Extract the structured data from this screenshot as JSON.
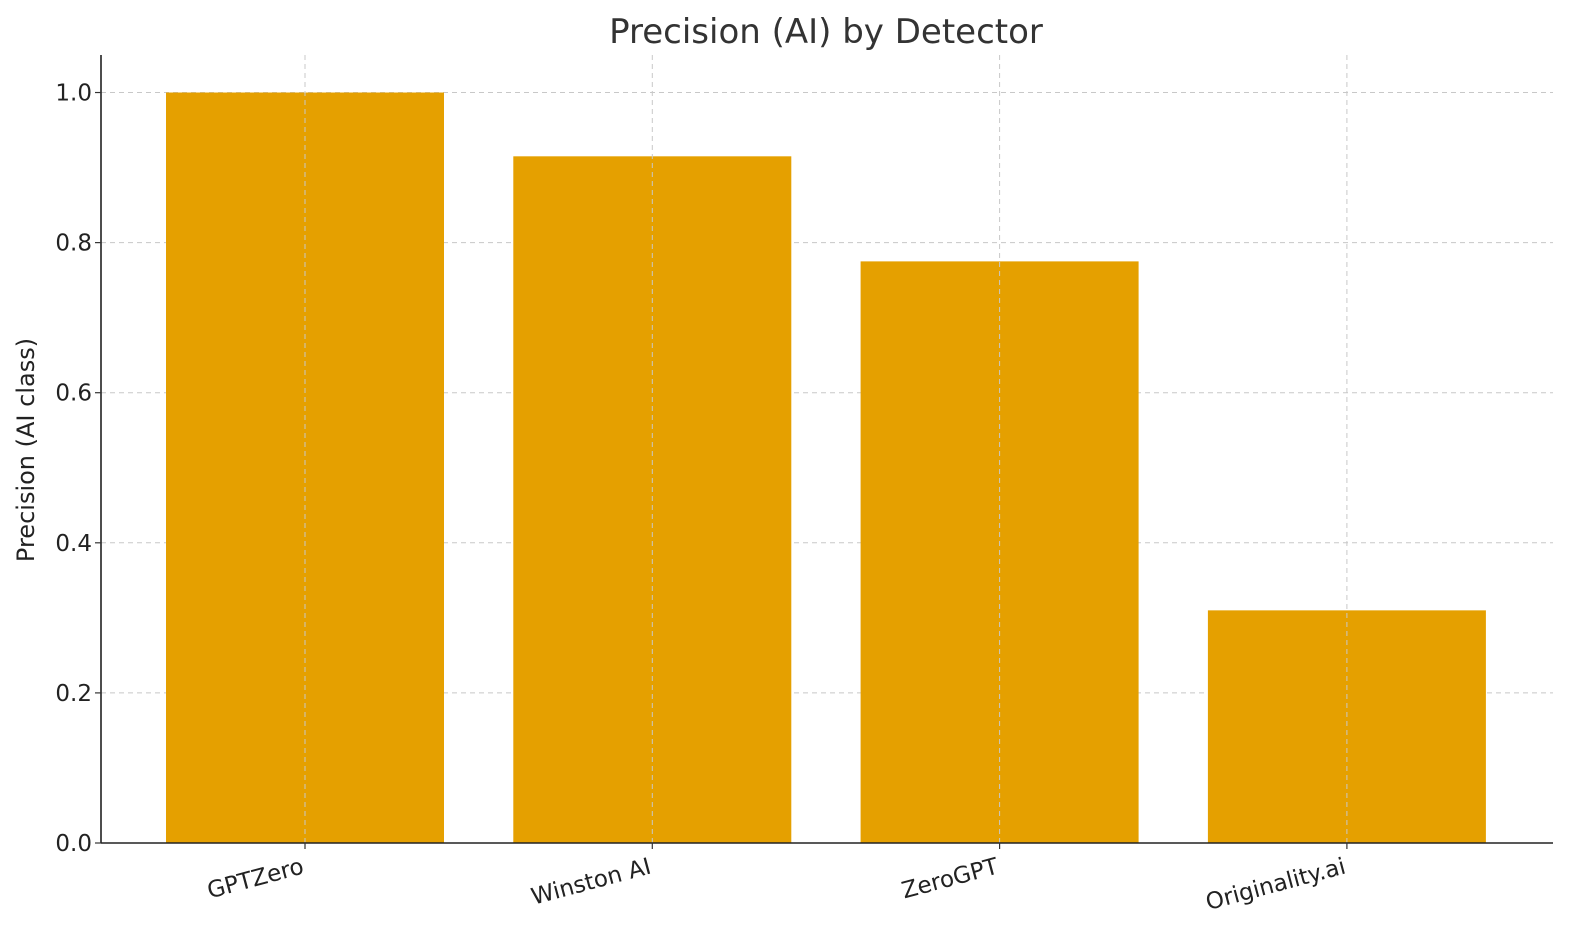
{
  "chart_data": {
    "type": "bar",
    "title": "Precision (AI) by Detector",
    "xlabel": "",
    "ylabel": "Precision (AI class)",
    "categories": [
      "GPTZero",
      "Winston AI",
      "ZeroGPT",
      "Originality.ai"
    ],
    "values": [
      1.0,
      0.915,
      0.775,
      0.31
    ],
    "ylim": [
      0,
      1.05
    ],
    "yticks": [
      "0.0",
      "0.2",
      "0.4",
      "0.6",
      "0.8",
      "1.0"
    ],
    "grid": true,
    "bar_color": "#E5A000"
  }
}
